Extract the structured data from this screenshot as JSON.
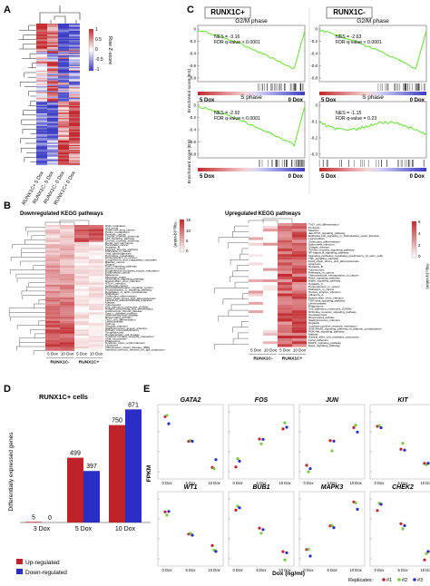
{
  "panels": {
    "A": {
      "label": "A",
      "colorbar_title": "Row Z-score",
      "colorbar_ticks": [
        "1",
        "0.5",
        "0",
        "-0.5",
        "-1"
      ],
      "columns": [
        "RUNX1C+ 5 Dox",
        "RUNX1C- 5 Dox",
        "RUNX1C- 0 Dox",
        "RUNX1C+ 0 Dox"
      ],
      "colors": {
        "high": "#c0282d",
        "mid": "#ffffff",
        "low": "#3b3bc4"
      }
    },
    "B": {
      "label": "B",
      "down": {
        "title": "Downregulated KEGG pathways",
        "colorbar_title": "-log₁₀(q-value)",
        "colorbar_ticks": [
          "15",
          "10",
          "5",
          "0"
        ],
        "columns": [
          "5 Dox",
          "10 Dox",
          "5 Dox",
          "10 Dox"
        ],
        "groups": [
          "RUNX1C-",
          "RUNX1C+"
        ],
        "pathways": [
          "DNA_replication",
          "Cell_cycle",
          "Small_cell_lung_cancer",
          "Purine_metabolism",
          "Prostate_cancer",
          "Chronic_myeloid_leukemia",
          "p53_signaling_pathway",
          "Chronic_myeloid_leukemia",
          "Renal_cell_carcinoma",
          "Pancreatic_cancer",
          "Hepatitis_B",
          "Fanconi_anemia_pathway",
          "Pathways_in_cancer",
          "Viral_carcinogenesis",
          "Pyrimidine_metabolism",
          "Proteoglycans_in_cancer",
          "Complement_and_coagulation_cascades",
          "Bladder_cancer",
          "Glioma",
          "FoxO_signaling_pathway",
          "Oocyte_meiosis",
          "Progesterone-mediated_oocyte_maturation",
          "Endometrial_cancer",
          "Melanoma",
          "Mismatch_repair",
          "Chemokine_signaling_pathway",
          "Epstein-Barr_virus_infection",
          "HTLV-I_infection",
          "Colorectal_cancer",
          "Phosphatidylinositol_signaling_system",
          "Phospholipase_D_signaling_pathway",
          "Regulation_of_actin_cytoskeleton",
          "Shigellosis",
          "Osteoclast_differentiation",
          "Fluid_shear_stress_and_atherosclerosis",
          "Leukocyte_transendothelial_migration",
          "Malaria",
          "Tuberculosis",
          "Cell_adhesion_molecules_(CAMs)",
          "Antigen_processing_and_presentation",
          "Autoimmune_thyroid_disease",
          "Type_I_diabetes_mellitus",
          "Graft-versus-host_disease",
          "Rheumatoid_arthritis",
          "Th17_cell_differentiation",
          "Leishmaniasis",
          "Asthma",
          "Allograft_rejection",
          "Staphylococcus_aureus_infection",
          "Primary_immunodeficiency",
          "Toxoplasmosis",
          "Hematopoietic_cell_lineage",
          "Cytokine-cytokine_receptor_interaction",
          "Viral_myocarditis",
          "Phagosome",
          "Systemic_lupus_erythematosus",
          "Lysosome",
          "Inflammatory_bowel_disease_(IBD)",
          "Intestinal_immune_network_for_IgA_production"
        ]
      },
      "up": {
        "title": "Upregulated KEGG pathways",
        "colorbar_title": "-log₁₀(q-value)",
        "colorbar_ticks": [
          "6",
          "4",
          "2",
          "0"
        ],
        "columns": [
          "5 Dox",
          "10 Dox",
          "5 Dox",
          "10 Dox"
        ],
        "groups": [
          "RUNX1C-",
          "RUNX1C+"
        ],
        "pathways": [
          "Th17_cell_differentiation",
          "Pertussis",
          "Measles",
          "Jak-STAT_signaling_pathway",
          "Epithelial_cell_signaling_in_Helicobacter_pylori_infection",
          "Legionellosis",
          "Osteoclast_differentiation",
          "Salmonella_infection",
          "Chagas_disease",
          "Toll-like_receptor_signaling_pathway",
          "NF-kappa_B_signaling_pathway",
          "Signaling_pathways_regulating_pluripotency_of_stem_cells",
          "TNF_signaling_pathway",
          "Fluid_shear_stress_and_atherosclerosis",
          "Apoptosis",
          "Hepatitis_B",
          "Tuberculosis",
          "Pathways_in_cancer",
          "Transcriptional_misregulation_in_cancer",
          "Rap1_signaling_pathway",
          "Hippo_signaling_pathway",
          "Hepatitis_C",
          "Proteoglycans_in_cancer",
          "Pathways_in_cancer",
          "Herpes_simplex_infection",
          "Influenza_A",
          "Epstein-Barr_virus_infection",
          "TGF-beta_signaling_pathway",
          "Leishmaniasis",
          "Phagosome",
          "Cell_adhesion_molecules_(CAMs)",
          "NOD-like_receptor_signaling_pathway",
          "Toxoplasmosis",
          "Rheumatoid_arthritis",
          "Staphylococcus_infection",
          "Hepatitis",
          "Cytokine-cytokine_receptor_interaction",
          "AGE-RAGE_signaling_pathway_in_diabetic_complications",
          "PI3K-Akt_signaling_pathway",
          "Malaria",
          "Natural_killer_cell_mediated_cytotoxicity",
          "Focal_adhesion",
          "MAPK_signaling_pathway",
          "Rap1_signaling_pathway"
        ]
      }
    },
    "C": {
      "label": "C",
      "headers": [
        "RUNX1C+",
        "RUNX1C-"
      ],
      "ylabel": "Enrichment score (ES)",
      "plots": [
        {
          "title": "G2/M phase",
          "nes": "NES = -3.16",
          "fdr": "FDR q-value < 0.0001",
          "left": "5 Dox",
          "right": "0 Dox",
          "ticks": [
            "0",
            "-0.2",
            "-0.4",
            "-0.6",
            "-0.8"
          ]
        },
        {
          "title": "G2/M phase",
          "nes": "NES = -2.63",
          "fdr": "FDR q-value < 0.0001",
          "left": "5 Dox",
          "right": "0 Dox",
          "ticks": [
            "0",
            "-0.2",
            "-0.4",
            "-0.6",
            "-0.8"
          ]
        },
        {
          "title": "S phase",
          "nes": "NES = -2.92",
          "fdr": "FDR q-value < 0.0001",
          "left": "5 Dox",
          "right": "0 Dox",
          "ticks": [
            "0",
            "-0.2",
            "-0.4",
            "-0.6",
            "-0.8"
          ]
        },
        {
          "title": "S phase",
          "nes": "NES = -1.15",
          "fdr": "FDR q-value = 0.23",
          "left": "5 Dox",
          "right": "0 Dox",
          "ticks": [
            "0",
            "-0.1",
            "-0.2",
            "-0.3"
          ]
        }
      ]
    },
    "D": {
      "label": "D",
      "title": "RUNX1C+ cells",
      "ylabel": "Differentially expressed genes",
      "legend": [
        "Up-regulated",
        "Down-regulated"
      ],
      "colors": {
        "up": "#c0222a",
        "down": "#2a2ec4"
      }
    },
    "E": {
      "label": "E",
      "ylabel": "FPKM",
      "xlabel": "Dox (ng/ml)",
      "replicates_label": "Replicates:",
      "replicates": [
        "#1",
        "#2",
        "#3"
      ],
      "replicate_colors": [
        "#c0222a",
        "#7ac943",
        "#2a2ec4"
      ],
      "genes": [
        "GATA2",
        "FOS",
        "JUN",
        "KIT",
        "WT1",
        "BUB1",
        "MAPK3",
        "CHEK2"
      ],
      "x_ticks": [
        "0 Dox",
        "5 Dox",
        "10 Dox"
      ]
    }
  },
  "chart_data": {
    "type": "bar",
    "categories": [
      "3 Dox",
      "5 Dox",
      "10 Dox"
    ],
    "series": [
      {
        "name": "Up-regulated",
        "values": [
          5,
          499,
          750
        ]
      },
      {
        "name": "Down-regulated",
        "values": [
          0,
          397,
          871
        ]
      }
    ],
    "title": "RUNX1C+ cells",
    "xlabel": "",
    "ylabel": "Differentially expressed genes",
    "ylim": [
      0,
      950
    ]
  }
}
